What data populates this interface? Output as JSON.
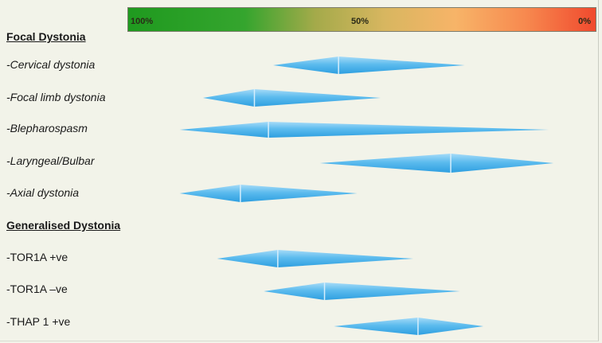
{
  "scale": {
    "left_label": "100%",
    "mid_label": "50%",
    "right_label": "0%"
  },
  "sections": [
    {
      "heading": "Focal Dystonia"
    },
    {
      "heading": "Generalised Dystonia"
    }
  ],
  "chart_data": {
    "type": "range",
    "title": "",
    "x_axis": {
      "labels": [
        "100%",
        "50%",
        "0%"
      ],
      "range": [
        100,
        0
      ]
    },
    "colors": {
      "diamond": "#42aee8",
      "diamond_light": "#9fd6f7"
    },
    "rows": [
      {
        "label": "-Cervical dystonia",
        "style": "italic",
        "left": 69,
        "peak": 55,
        "right": 28
      },
      {
        "label": "-Focal limb dystonia",
        "style": "italic",
        "left": 84,
        "peak": 73,
        "right": 46
      },
      {
        "label": "-Blepharospasm",
        "style": "italic",
        "left": 89,
        "peak": 70,
        "right": 10
      },
      {
        "label": "-Laryngeal/Bulbar",
        "style": "italic",
        "left": 59,
        "peak": 31,
        "right": 9
      },
      {
        "label": "-Axial dystonia",
        "style": "italic",
        "left": 89,
        "peak": 76,
        "right": 51
      },
      {
        "label": "-TOR1A +ve",
        "style": "normal",
        "left": 81,
        "peak": 68,
        "right": 39
      },
      {
        "label": "-TOR1A –ve",
        "style": "normal",
        "left": 71,
        "peak": 58,
        "right": 29
      },
      {
        "label": "-THAP 1 +ve",
        "style": "normal",
        "left": 56,
        "peak": 38,
        "right": 24
      }
    ]
  }
}
